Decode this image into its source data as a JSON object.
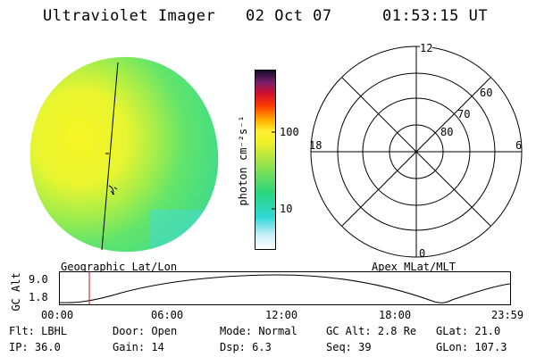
{
  "header": {
    "instrument": "Ultraviolet Imager",
    "date": "02 Oct 07",
    "time": "01:53:15 UT"
  },
  "colorbar": {
    "label": "photon cm⁻²s⁻¹",
    "tick_labels": [
      "100",
      "10"
    ],
    "tick_values": [
      100,
      10
    ]
  },
  "left_panel": {
    "label": "Geographic Lat/Lon"
  },
  "right_panel": {
    "label": "Apex MLat/MLT",
    "ring_labels": [
      "60",
      "70",
      "80"
    ],
    "mlt_labels": {
      "top": "12",
      "left": "18",
      "right": "6",
      "bottom": "0"
    }
  },
  "altitude_plot": {
    "ylabel": "GC Alt",
    "y_ticks": [
      "9.0",
      "1.8"
    ],
    "x_ticks": [
      "00:00",
      "06:00",
      "12:00",
      "18:00",
      "23:59"
    ]
  },
  "status": {
    "row1": {
      "flt": "Flt: LBHL",
      "door": "Door: Open",
      "mode": "Mode: Normal",
      "gc_alt": "GC Alt: 2.8 Re",
      "glat": "GLat:  21.0"
    },
    "row2": {
      "ip": "IP: 36.0",
      "gain": "Gain: 14",
      "dsp": "Dsp:    6.3",
      "seq": "Seq: 39",
      "glon": "GLon: 107.3"
    }
  },
  "colors": {
    "image_left": "#f4f52a",
    "image_right": "#3ddc7c",
    "cursor_line": "#e00000"
  }
}
